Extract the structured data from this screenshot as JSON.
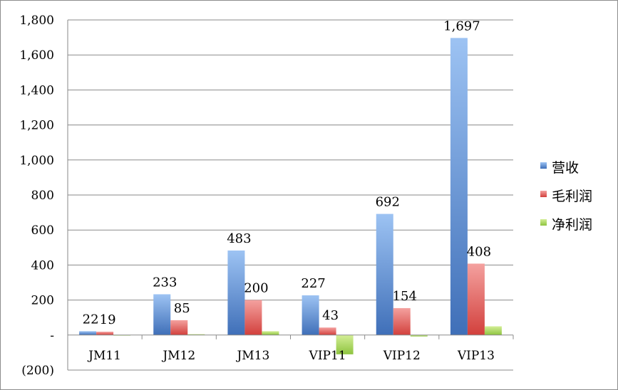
{
  "chart_data": {
    "type": "bar",
    "title": "",
    "xlabel": "",
    "ylabel": "",
    "ylim": [
      -200,
      1800
    ],
    "yticks": [
      -200,
      0,
      200,
      400,
      600,
      800,
      1000,
      1200,
      1400,
      1600,
      1800
    ],
    "ytick_labels": [
      "(200)",
      "-",
      "200",
      "400",
      "600",
      "800",
      "1,000",
      "1,200",
      "1,400",
      "1,600",
      "1,800"
    ],
    "grid": true,
    "legend_position": "right",
    "categories": [
      "JM11",
      "JM12",
      "JM13",
      "VIP11",
      "VIP12",
      "VIP13"
    ],
    "series": [
      {
        "name": "营收",
        "color": "#4f81bd",
        "values": [
          22,
          233,
          483,
          227,
          692,
          1697
        ],
        "labels": [
          "22",
          "233",
          "483",
          "227",
          "692",
          "1,697"
        ]
      },
      {
        "name": "毛利润",
        "color": "#c0504d",
        "values": [
          19,
          85,
          200,
          43,
          154,
          408
        ],
        "labels": [
          "19",
          "85",
          "200",
          "43",
          "154",
          "408"
        ]
      },
      {
        "name": "净利润",
        "color": "#9bbb59",
        "values": [
          -3,
          5,
          22,
          -110,
          -8,
          50
        ],
        "labels": [
          "",
          "",
          "",
          "",
          "",
          ""
        ]
      }
    ]
  }
}
